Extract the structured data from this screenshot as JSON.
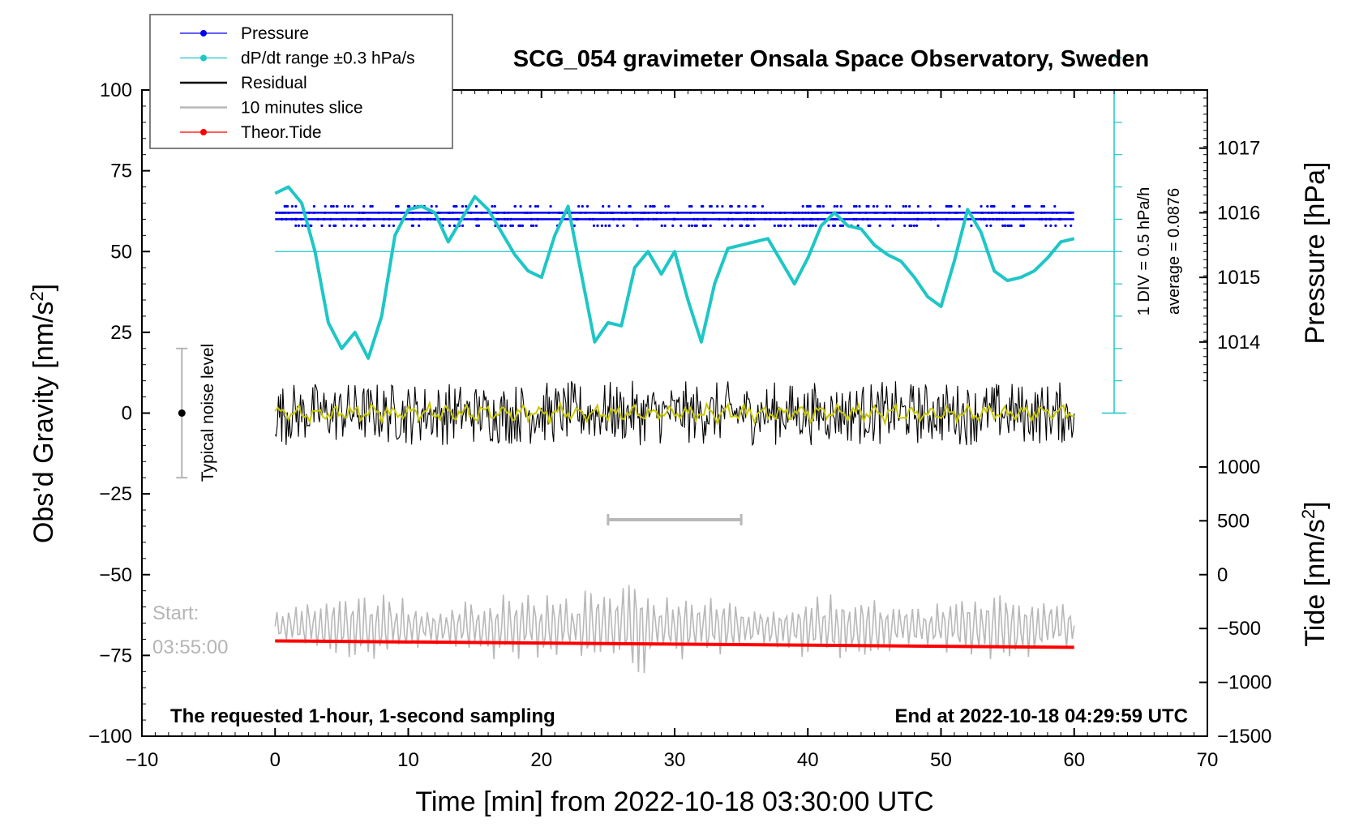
{
  "chart_data": {
    "type": "line",
    "title": "SCG_054 gravimeter Onsala Space Observatory, Sweden",
    "xlabel": "Time [min] from 2022-10-18 03:30:00 UTC",
    "ylabel_left": "Obs’d Gravity [nm/s²]",
    "ylabel_right_top": "Pressure [hPa]",
    "ylabel_right_bottom": "Tide [nm/s²]",
    "xlim": [
      -10,
      70
    ],
    "ylim": [
      -100,
      100
    ],
    "x_ticks": [
      "−10",
      "0",
      "10",
      "20",
      "30",
      "40",
      "50",
      "60",
      "70"
    ],
    "y_ticks_left": [
      "100",
      "75",
      "50",
      "25",
      "0",
      "−25",
      "−50",
      "−75",
      "−100"
    ],
    "pressure_ticks": [
      "1017",
      "1016",
      "1015",
      "1014"
    ],
    "tide_ticks": [
      "1000",
      "500",
      "0",
      "−500",
      "−1000",
      "−1500"
    ],
    "legend": [
      {
        "name": "Pressure",
        "color": "#0000ee",
        "marker": "dot"
      },
      {
        "name": "dP/dt range ±0.3 hPa/s",
        "color": "#1fc6c6",
        "marker": "dot"
      },
      {
        "name": "Residual",
        "color": "#000000",
        "marker": "line"
      },
      {
        "name": "10 minutes slice",
        "color": "#b8b8b8",
        "marker": "line"
      },
      {
        "name": "Theor.Tide",
        "color": "#ff0000",
        "marker": "dot"
      }
    ],
    "annotations": {
      "dpdt_scale": "1 DIV = 0.5 hPa/h",
      "dpdt_average": "average = 0.0876",
      "noise": "Typical noise level",
      "start_label": "Start:",
      "start_time": "03:55:00",
      "bottom_left": "The requested 1-hour, 1-second sampling",
      "bottom_right": "End at 2022-10-18 04:29:59 UTC"
    },
    "pressure_levels_gravity_units": [
      64,
      62,
      60,
      58
    ],
    "dpdt_baseline": 50,
    "dpdt_series": {
      "x": [
        0,
        1,
        2,
        3,
        4,
        5,
        6,
        7,
        8,
        9,
        10,
        11,
        12,
        13,
        14,
        15,
        16,
        17,
        18,
        19,
        20,
        21,
        22,
        23,
        24,
        25,
        26,
        27,
        28,
        29,
        30,
        31,
        32,
        33,
        34,
        35,
        36,
        37,
        38,
        39,
        40,
        41,
        42,
        43,
        44,
        45,
        46,
        47,
        48,
        49,
        50,
        51,
        52,
        53,
        54,
        55,
        56,
        57,
        58,
        59,
        60
      ],
      "y": [
        68,
        70,
        65,
        50,
        28,
        20,
        25,
        17,
        30,
        55,
        63,
        64,
        62,
        53,
        60,
        67,
        63,
        56,
        49,
        44,
        42,
        55,
        64,
        43,
        22,
        28,
        27,
        45,
        50,
        43,
        50,
        35,
        22,
        40,
        51,
        52,
        53,
        54,
        47,
        40,
        48,
        58,
        62,
        58,
        57,
        52,
        49,
        47,
        42,
        36,
        33,
        47,
        63,
        56,
        44,
        41,
        42,
        44,
        48,
        53,
        54
      ]
    },
    "residual_envelope": [
      -12,
      12
    ],
    "residual_smoothed_color": "#c9c800",
    "slice_bar_x": [
      25,
      35
    ],
    "slice_bar_y": -33,
    "slice_series_center": -66,
    "tide_series": {
      "x": [
        0,
        60
      ],
      "y": [
        -70.5,
        -72.5
      ]
    },
    "noise_bar": {
      "x": -7,
      "y": [
        -20,
        20
      ]
    }
  }
}
